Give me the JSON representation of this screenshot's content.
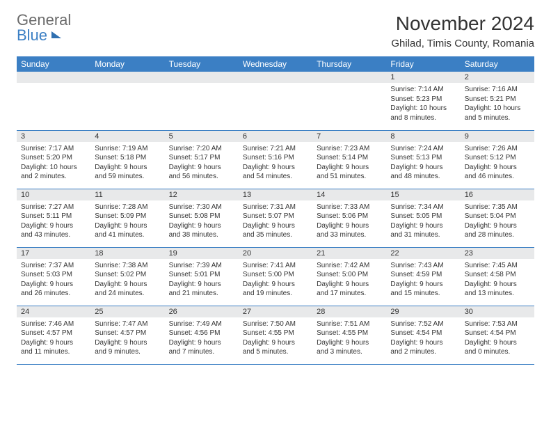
{
  "logo": {
    "line1": "General",
    "line2": "Blue"
  },
  "title": "November 2024",
  "location": "Ghilad, Timis County, Romania",
  "colors": {
    "header_bg": "#3b7fc4",
    "header_text": "#ffffff",
    "daynum_bg": "#e8e9ea",
    "border": "#3b7fc4",
    "body_text": "#333333",
    "logo_gray": "#6b6b6b",
    "logo_blue": "#3b7fc4",
    "background": "#ffffff"
  },
  "typography": {
    "title_fontsize": 28,
    "location_fontsize": 15,
    "header_fontsize": 12,
    "daynum_fontsize": 11,
    "body_fontsize": 10,
    "logo_fontsize": 22
  },
  "weekdays": [
    "Sunday",
    "Monday",
    "Tuesday",
    "Wednesday",
    "Thursday",
    "Friday",
    "Saturday"
  ],
  "weeks": [
    [
      null,
      null,
      null,
      null,
      null,
      {
        "n": "1",
        "sr": "7:14 AM",
        "ss": "5:23 PM",
        "dl": "10 hours and 8 minutes."
      },
      {
        "n": "2",
        "sr": "7:16 AM",
        "ss": "5:21 PM",
        "dl": "10 hours and 5 minutes."
      }
    ],
    [
      {
        "n": "3",
        "sr": "7:17 AM",
        "ss": "5:20 PM",
        "dl": "10 hours and 2 minutes."
      },
      {
        "n": "4",
        "sr": "7:19 AM",
        "ss": "5:18 PM",
        "dl": "9 hours and 59 minutes."
      },
      {
        "n": "5",
        "sr": "7:20 AM",
        "ss": "5:17 PM",
        "dl": "9 hours and 56 minutes."
      },
      {
        "n": "6",
        "sr": "7:21 AM",
        "ss": "5:16 PM",
        "dl": "9 hours and 54 minutes."
      },
      {
        "n": "7",
        "sr": "7:23 AM",
        "ss": "5:14 PM",
        "dl": "9 hours and 51 minutes."
      },
      {
        "n": "8",
        "sr": "7:24 AM",
        "ss": "5:13 PM",
        "dl": "9 hours and 48 minutes."
      },
      {
        "n": "9",
        "sr": "7:26 AM",
        "ss": "5:12 PM",
        "dl": "9 hours and 46 minutes."
      }
    ],
    [
      {
        "n": "10",
        "sr": "7:27 AM",
        "ss": "5:11 PM",
        "dl": "9 hours and 43 minutes."
      },
      {
        "n": "11",
        "sr": "7:28 AM",
        "ss": "5:09 PM",
        "dl": "9 hours and 41 minutes."
      },
      {
        "n": "12",
        "sr": "7:30 AM",
        "ss": "5:08 PM",
        "dl": "9 hours and 38 minutes."
      },
      {
        "n": "13",
        "sr": "7:31 AM",
        "ss": "5:07 PM",
        "dl": "9 hours and 35 minutes."
      },
      {
        "n": "14",
        "sr": "7:33 AM",
        "ss": "5:06 PM",
        "dl": "9 hours and 33 minutes."
      },
      {
        "n": "15",
        "sr": "7:34 AM",
        "ss": "5:05 PM",
        "dl": "9 hours and 31 minutes."
      },
      {
        "n": "16",
        "sr": "7:35 AM",
        "ss": "5:04 PM",
        "dl": "9 hours and 28 minutes."
      }
    ],
    [
      {
        "n": "17",
        "sr": "7:37 AM",
        "ss": "5:03 PM",
        "dl": "9 hours and 26 minutes."
      },
      {
        "n": "18",
        "sr": "7:38 AM",
        "ss": "5:02 PM",
        "dl": "9 hours and 24 minutes."
      },
      {
        "n": "19",
        "sr": "7:39 AM",
        "ss": "5:01 PM",
        "dl": "9 hours and 21 minutes."
      },
      {
        "n": "20",
        "sr": "7:41 AM",
        "ss": "5:00 PM",
        "dl": "9 hours and 19 minutes."
      },
      {
        "n": "21",
        "sr": "7:42 AM",
        "ss": "5:00 PM",
        "dl": "9 hours and 17 minutes."
      },
      {
        "n": "22",
        "sr": "7:43 AM",
        "ss": "4:59 PM",
        "dl": "9 hours and 15 minutes."
      },
      {
        "n": "23",
        "sr": "7:45 AM",
        "ss": "4:58 PM",
        "dl": "9 hours and 13 minutes."
      }
    ],
    [
      {
        "n": "24",
        "sr": "7:46 AM",
        "ss": "4:57 PM",
        "dl": "9 hours and 11 minutes."
      },
      {
        "n": "25",
        "sr": "7:47 AM",
        "ss": "4:57 PM",
        "dl": "9 hours and 9 minutes."
      },
      {
        "n": "26",
        "sr": "7:49 AM",
        "ss": "4:56 PM",
        "dl": "9 hours and 7 minutes."
      },
      {
        "n": "27",
        "sr": "7:50 AM",
        "ss": "4:55 PM",
        "dl": "9 hours and 5 minutes."
      },
      {
        "n": "28",
        "sr": "7:51 AM",
        "ss": "4:55 PM",
        "dl": "9 hours and 3 minutes."
      },
      {
        "n": "29",
        "sr": "7:52 AM",
        "ss": "4:54 PM",
        "dl": "9 hours and 2 minutes."
      },
      {
        "n": "30",
        "sr": "7:53 AM",
        "ss": "4:54 PM",
        "dl": "9 hours and 0 minutes."
      }
    ]
  ],
  "labels": {
    "sunrise": "Sunrise:",
    "sunset": "Sunset:",
    "daylight": "Daylight:"
  }
}
